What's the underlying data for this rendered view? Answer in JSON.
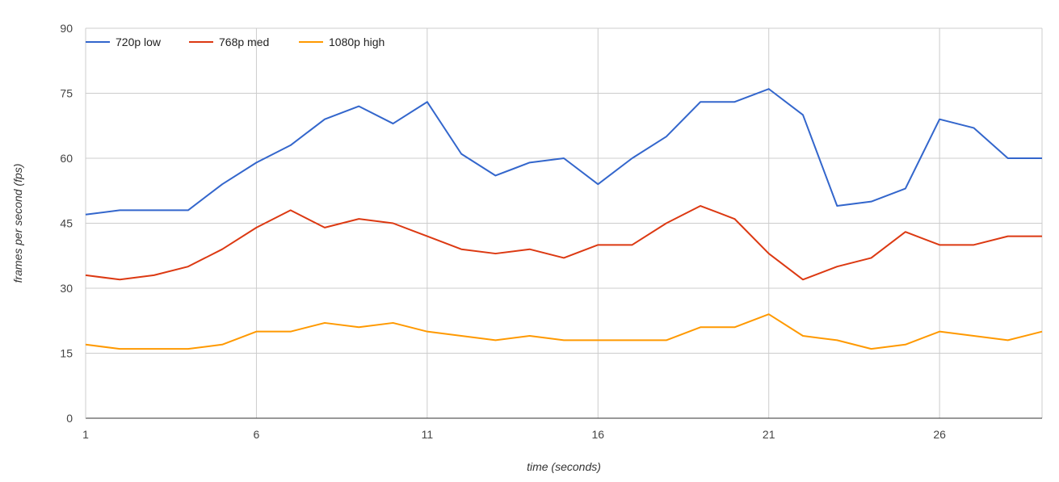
{
  "chart_data": {
    "type": "line",
    "title": "",
    "xlabel": "time (seconds)",
    "ylabel": "frames per second (fps)",
    "xlim": [
      1,
      29
    ],
    "ylim": [
      0,
      90
    ],
    "x_ticks": [
      1,
      6,
      11,
      16,
      21,
      26
    ],
    "y_ticks": [
      0,
      15,
      30,
      45,
      60,
      75,
      90
    ],
    "grid": true,
    "legend_position": "top-left",
    "x": [
      1,
      2,
      3,
      4,
      5,
      6,
      7,
      8,
      9,
      10,
      11,
      12,
      13,
      14,
      15,
      16,
      17,
      18,
      19,
      20,
      21,
      22,
      23,
      24,
      25,
      26,
      27,
      28,
      29
    ],
    "series": [
      {
        "name": "720p low",
        "color": "#3366cc",
        "values": [
          47,
          48,
          48,
          48,
          54,
          59,
          63,
          69,
          72,
          68,
          73,
          61,
          56,
          59,
          60,
          54,
          60,
          65,
          73,
          73,
          76,
          70,
          49,
          50,
          53,
          69,
          67,
          60,
          60
        ]
      },
      {
        "name": "768p med",
        "color": "#dc3912",
        "values": [
          33,
          32,
          33,
          35,
          39,
          44,
          48,
          44,
          46,
          45,
          42,
          39,
          38,
          39,
          37,
          40,
          40,
          45,
          49,
          46,
          38,
          32,
          35,
          37,
          43,
          40,
          40,
          42,
          42
        ]
      },
      {
        "name": "1080p high",
        "color": "#ff9900",
        "values": [
          17,
          16,
          16,
          16,
          17,
          20,
          20,
          22,
          21,
          22,
          20,
          19,
          18,
          19,
          18,
          18,
          18,
          18,
          21,
          21,
          24,
          19,
          18,
          16,
          17,
          20,
          19,
          18,
          20
        ]
      }
    ]
  }
}
